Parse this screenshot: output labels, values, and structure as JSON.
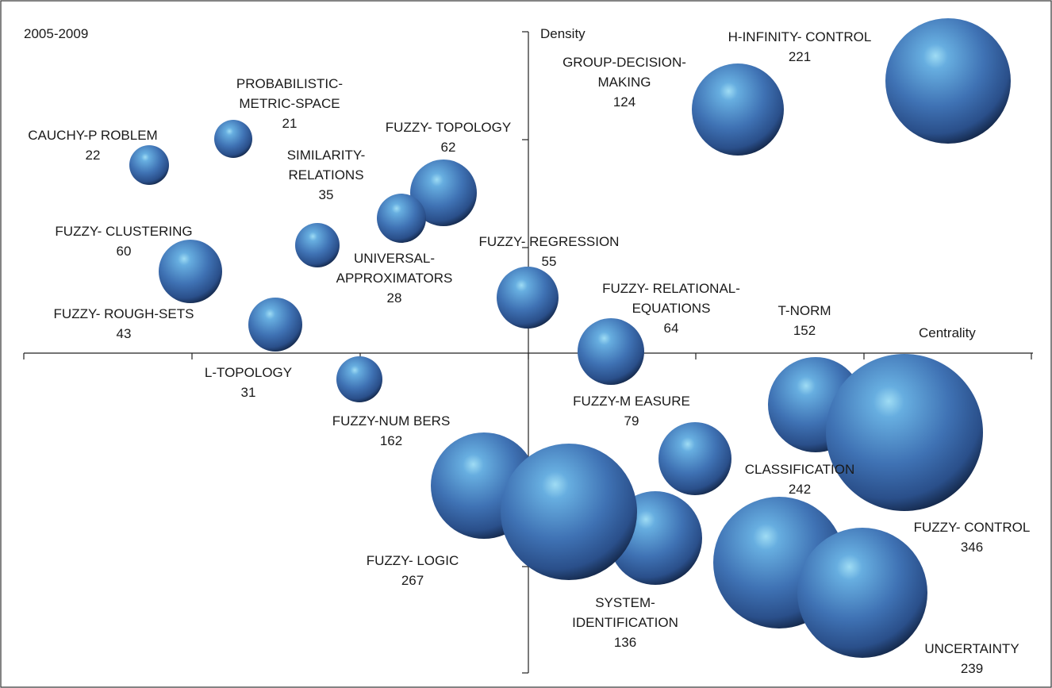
{
  "chart_data": {
    "type": "bubble",
    "panel_label": "2005-2009",
    "xlabel": "Centrality",
    "ylabel": "Density",
    "grid": false,
    "legend": "none",
    "bubble_color": "#3f6fae",
    "bubbles": [
      {
        "label_lines": [
          "H-INFINITY- CONTROL"
        ],
        "value": 221
      },
      {
        "label_lines": [
          "GROUP-DECISION-",
          "MAKING"
        ],
        "value": 124
      },
      {
        "label_lines": [
          "PROBABILISTIC-",
          "METRIC-SPACE"
        ],
        "value": 21
      },
      {
        "label_lines": [
          "CAUCHY-P ROBLEM"
        ],
        "value": 22
      },
      {
        "label_lines": [
          "FUZZY- TOPOLOGY"
        ],
        "value": 62
      },
      {
        "label_lines": [
          "SIMILARITY-",
          "RELATIONS"
        ],
        "value": 35
      },
      {
        "label_lines": [
          "FUZZY- CLUSTERING"
        ],
        "value": 60
      },
      {
        "label_lines": [
          "FUZZY- REGRESSION"
        ],
        "value": 55
      },
      {
        "label_lines": [
          "UNIVERSAL-",
          "APPROXIMATORS"
        ],
        "value": 28
      },
      {
        "label_lines": [
          "FUZZY- RELATIONAL-",
          "EQUATIONS"
        ],
        "value": 64
      },
      {
        "label_lines": [
          "T-NORM"
        ],
        "value": 152
      },
      {
        "label_lines": [
          "FUZZY- ROUGH-SETS"
        ],
        "value": 43
      },
      {
        "label_lines": [
          "L-TOPOLOGY"
        ],
        "value": 31
      },
      {
        "label_lines": [
          "FUZZY-M EASURE"
        ],
        "value": 79
      },
      {
        "label_lines": [
          "FUZZY-NUM BERS"
        ],
        "value": 162
      },
      {
        "label_lines": [
          "CLASSIFICATION"
        ],
        "value": 242
      },
      {
        "label_lines": [
          "FUZZY- CONTROL"
        ],
        "value": 346
      },
      {
        "label_lines": [
          "FUZZY- LOGIC"
        ],
        "value": 267
      },
      {
        "label_lines": [
          "SYSTEM-",
          "IDENTIFICATION"
        ],
        "value": 136
      },
      {
        "label_lines": [
          "UNCERTAINTY"
        ],
        "value": 239
      }
    ]
  }
}
